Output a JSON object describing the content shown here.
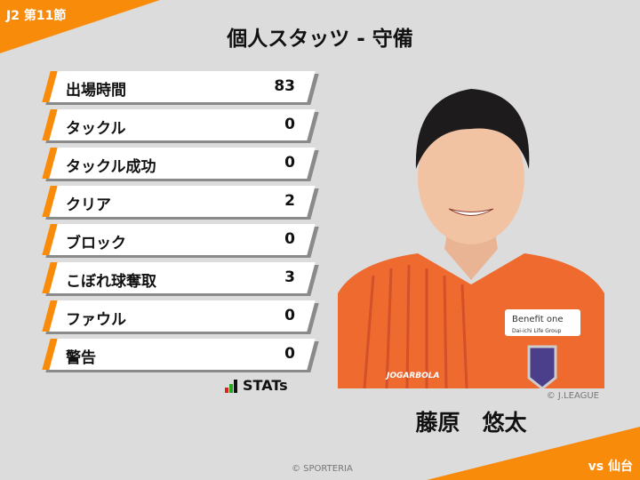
{
  "header": {
    "round": "J2 第11節",
    "title": "個人スタッツ - 守備"
  },
  "stats": [
    {
      "label": "出場時間",
      "value": "83"
    },
    {
      "label": "タックル",
      "value": "0"
    },
    {
      "label": "タックル成功",
      "value": "0"
    },
    {
      "label": "クリア",
      "value": "2"
    },
    {
      "label": "ブロック",
      "value": "0"
    },
    {
      "label": "こぼれ球奪取",
      "value": "3"
    },
    {
      "label": "ファウル",
      "value": "0"
    },
    {
      "label": "警告",
      "value": "0"
    }
  ],
  "stats_logo": "STATs",
  "player": {
    "name": "藤原　悠太",
    "photo_credit": "© J.LEAGUE",
    "sponsor": "Benefit one",
    "sponsor_sub": "Dai-ichi Life Group",
    "kit_brand": "JOGARBOLA"
  },
  "opponent": "vs 仙台",
  "copyright": "© SPORTERIA",
  "colors": {
    "accent": "#f98b0a",
    "background": "#dcdcdc"
  }
}
